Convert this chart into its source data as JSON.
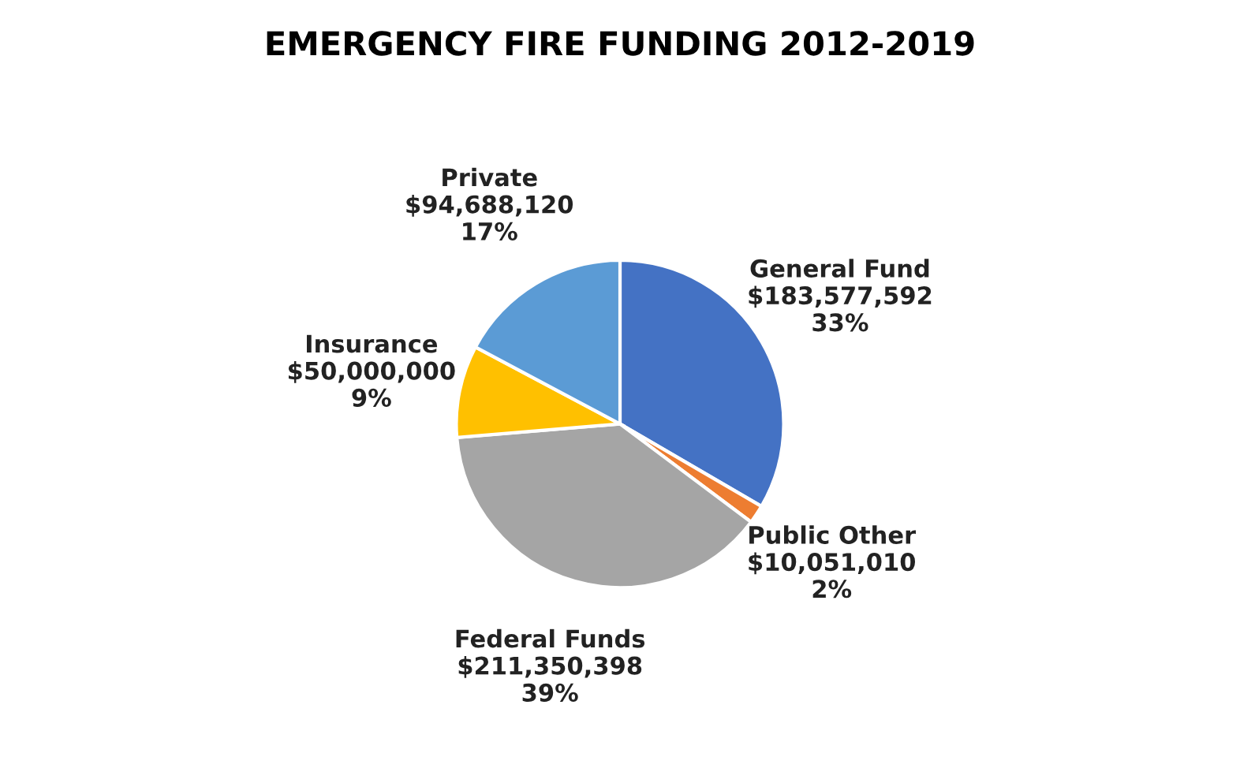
{
  "chart_data": {
    "type": "pie",
    "title": "EMERGENCY FIRE FUNDING 2012-2019",
    "categories": [
      "General Fund",
      "Public Other",
      "Federal Funds",
      "Insurance",
      "Private"
    ],
    "values": [
      183577592,
      10051010,
      211350398,
      50000000,
      94688120
    ],
    "value_labels": [
      "$183,577,592\n33%",
      "$10,051,010\n2%",
      "$211,350,398\n39%",
      "$50,000,000\n9%",
      "$94,688,120\n17%"
    ],
    "colors": [
      "#4472c4",
      "#ed7d31",
      "#a5a5a5",
      "#ffc000",
      "#5b9bd5"
    ],
    "legend": false
  }
}
